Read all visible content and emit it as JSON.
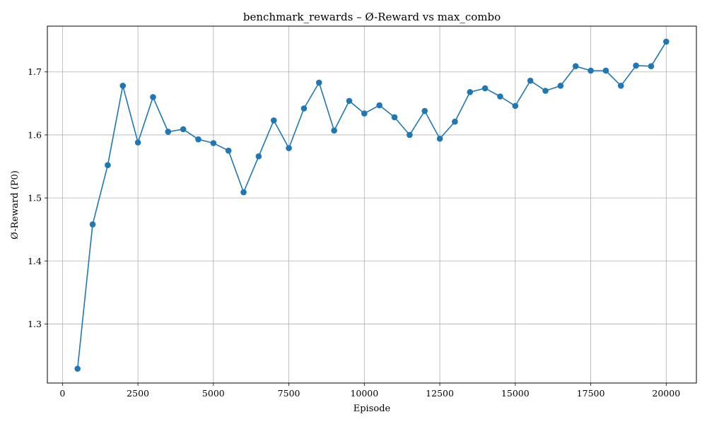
{
  "chart_data": {
    "type": "line",
    "title": "benchmark_rewards – Ø-Reward vs max_combo",
    "xlabel": "Episode",
    "ylabel": "Ø-Reward (P0)",
    "xlim": [
      -500,
      21000
    ],
    "ylim": [
      1.2063,
      1.7726
    ],
    "xticks": [
      0,
      2500,
      5000,
      7500,
      10000,
      12500,
      15000,
      17500,
      20000
    ],
    "xtick_labels": [
      "0",
      "2500",
      "5000",
      "7500",
      "10000",
      "12500",
      "15000",
      "17500",
      "20000"
    ],
    "yticks": [
      1.3,
      1.4,
      1.5,
      1.6,
      1.7
    ],
    "ytick_labels": [
      "1.3",
      "1.4",
      "1.5",
      "1.6",
      "1.7"
    ],
    "grid": true,
    "legend": "none",
    "color": "#1f77b4",
    "marker": "circle",
    "series": [
      {
        "x": [
          500,
          1000,
          1500,
          2000,
          2500,
          3000,
          3500,
          4000,
          4500,
          5000,
          5500,
          6000,
          6500,
          7000,
          7500,
          8000,
          8500,
          9000,
          9500,
          10000,
          10500,
          11000,
          11500,
          12000,
          12500,
          13000,
          13500,
          14000,
          14500,
          15000,
          15500,
          16000,
          16500,
          17000,
          17500,
          18000,
          18500,
          19000,
          19500,
          20000
        ],
        "y": [
          1.229,
          1.458,
          1.552,
          1.678,
          1.588,
          1.66,
          1.605,
          1.609,
          1.593,
          1.587,
          1.575,
          1.509,
          1.566,
          1.623,
          1.579,
          1.642,
          1.683,
          1.607,
          1.654,
          1.634,
          1.647,
          1.628,
          1.6,
          1.638,
          1.594,
          1.621,
          1.668,
          1.674,
          1.661,
          1.646,
          1.686,
          1.67,
          1.678,
          1.709,
          1.702,
          1.702,
          1.678,
          1.71,
          1.709,
          1.748
        ]
      }
    ]
  }
}
